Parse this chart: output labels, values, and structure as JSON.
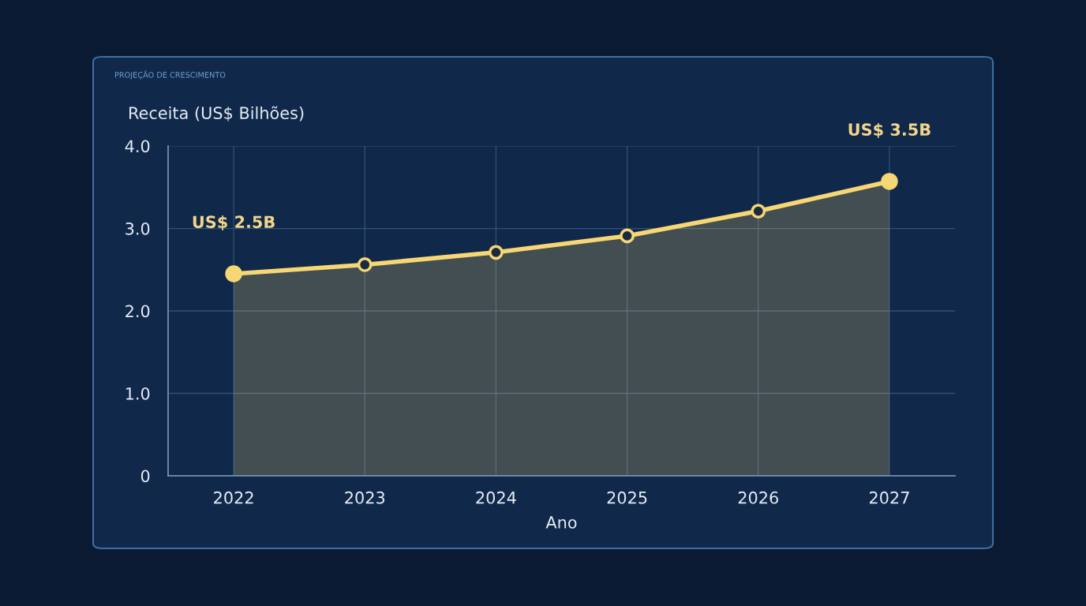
{
  "chart_data": {
    "type": "area",
    "title": "PROJEÇÃO DE CRESCIMENTO",
    "ylabel": "Receita (US$ Bilhões)",
    "xlabel": "Ano",
    "categories": [
      "2022",
      "2023",
      "2024",
      "2025",
      "2026",
      "2027"
    ],
    "series": [
      {
        "color": "#f7d774",
        "values": [
          2.45,
          2.56,
          2.71,
          2.91,
          3.21,
          3.57
        ]
      }
    ],
    "ylim": [
      0,
      4.0
    ],
    "yticks": [
      0,
      {
        "value": 1,
        "label": "1.0"
      },
      {
        "value": 2,
        "label": "2.0"
      },
      {
        "value": 3,
        "label": "3.0"
      },
      {
        "value": 4,
        "label": "4.0"
      }
    ],
    "grid": true,
    "marker": "circle",
    "line_style": "solid",
    "annotations": [
      {
        "text": "US$ 2.5B",
        "x": "2022",
        "y": 2.45
      },
      {
        "text": "US$ 3.5B",
        "x": "2027",
        "y": 3.57
      }
    ]
  }
}
